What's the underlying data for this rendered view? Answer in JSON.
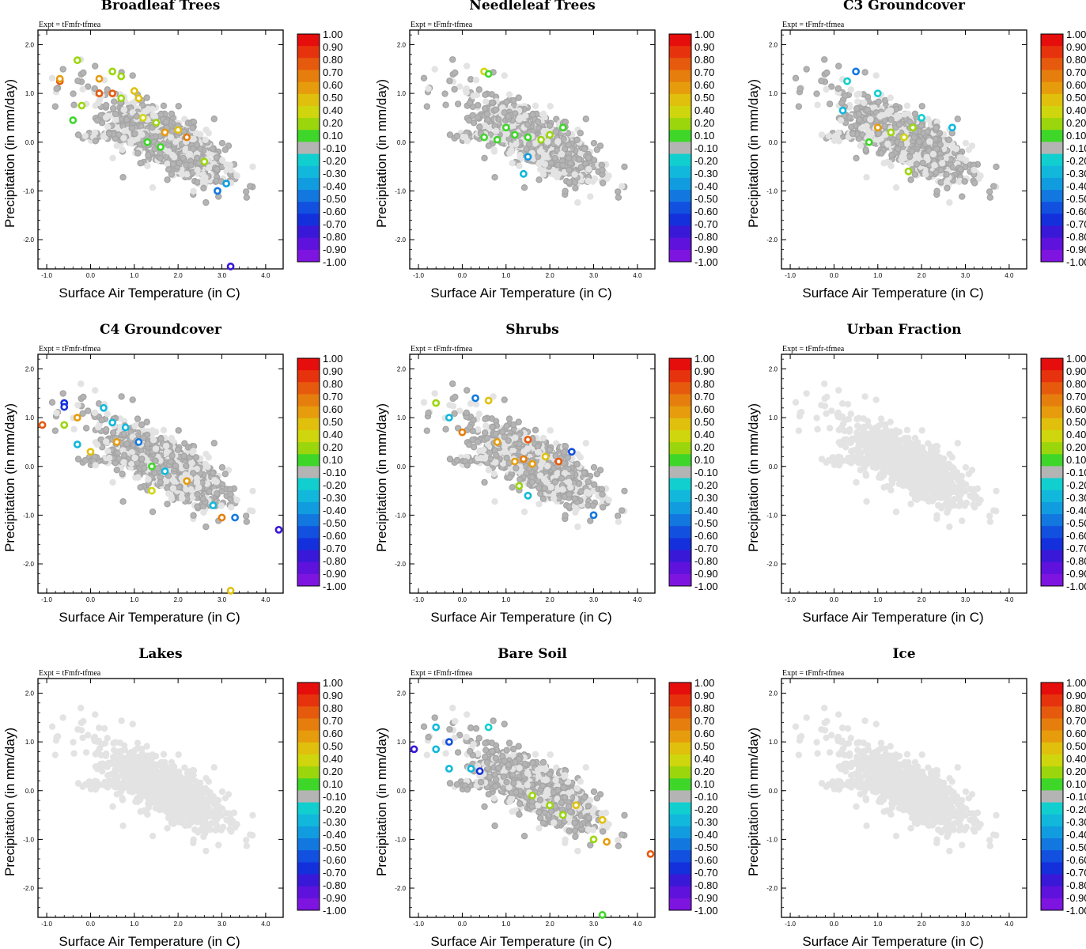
{
  "figure": {
    "expt_label": "Expt = tFmfr-tfmea",
    "xlabel": "Surface Air Temperature (in C)",
    "ylabel": "Precipitation (in mm/day)"
  },
  "colorbar": {
    "labels": [
      "1.00",
      "0.90",
      "0.80",
      "0.70",
      "0.60",
      "0.50",
      "0.40",
      "0.20",
      "0.10",
      "-0.10",
      "-0.20",
      "-0.30",
      "-0.40",
      "-0.50",
      "-0.60",
      "-0.70",
      "-0.80",
      "-0.90",
      "-1.00"
    ],
    "colors": [
      "#e60d0d",
      "#e6330d",
      "#e65a0d",
      "#e67e0d",
      "#e69c0d",
      "#e0c00d",
      "#cfd60d",
      "#9bd60d",
      "#3fd62a",
      "#b4b4b4",
      "#12cfcf",
      "#12b8dc",
      "#129ce0",
      "#1278e0",
      "#1250e0",
      "#1430dc",
      "#3a18d8",
      "#5e12dc",
      "#7e14e0"
    ],
    "neutral_color": "#b4b4b4",
    "background_point_color": "#e3e3e3"
  },
  "chart_data": [
    {
      "type": "scatter",
      "title": "Broadleaf Trees",
      "xlabel": "Surface Air Temperature (in C)",
      "ylabel": "Precipitation (in mm/day)",
      "xlim": [
        -1.2,
        4.4
      ],
      "ylim": [
        -2.6,
        2.3
      ],
      "xticks": [
        "-1.0",
        "0.0",
        "1.0",
        "2.0",
        "3.0",
        "4.0"
      ],
      "yticks": [
        "2.0",
        "1.0",
        "0.0",
        "-1.0",
        "-2.0"
      ],
      "highlighted_points": [
        {
          "x": -0.7,
          "y": 1.25,
          "v": 0.8
        },
        {
          "x": -0.7,
          "y": 1.3,
          "v": 0.6
        },
        {
          "x": -0.3,
          "y": 1.68,
          "v": 0.2
        },
        {
          "x": -0.2,
          "y": 0.75,
          "v": 0.2
        },
        {
          "x": 0.2,
          "y": 1.3,
          "v": 0.6
        },
        {
          "x": 0.2,
          "y": 1.0,
          "v": 0.8
        },
        {
          "x": 0.5,
          "y": 1.45,
          "v": 0.3
        },
        {
          "x": 0.5,
          "y": 1.0,
          "v": 0.8
        },
        {
          "x": 0.7,
          "y": 1.35,
          "v": 0.2
        },
        {
          "x": 1.0,
          "y": 1.05,
          "v": 0.5
        },
        {
          "x": 1.1,
          "y": 0.9,
          "v": 0.5
        },
        {
          "x": 1.2,
          "y": 0.5,
          "v": 0.4
        },
        {
          "x": 1.5,
          "y": 0.4,
          "v": 0.3
        },
        {
          "x": 1.7,
          "y": 0.2,
          "v": 0.6
        },
        {
          "x": 2.0,
          "y": 0.25,
          "v": 0.5
        },
        {
          "x": 2.2,
          "y": 0.1,
          "v": 0.7
        },
        {
          "x": 1.3,
          "y": 0.0,
          "v": 0.15
        },
        {
          "x": 1.6,
          "y": -0.1,
          "v": 0.15
        },
        {
          "x": 2.6,
          "y": -0.4,
          "v": 0.2
        },
        {
          "x": 2.9,
          "y": -1.0,
          "v": -0.5
        },
        {
          "x": 3.1,
          "y": -0.85,
          "v": -0.4
        },
        {
          "x": 3.2,
          "y": -2.55,
          "v": -0.8
        },
        {
          "x": -0.4,
          "y": 0.45,
          "v": 0.15
        },
        {
          "x": 0.7,
          "y": 0.9,
          "v": 0.3
        }
      ]
    },
    {
      "type": "scatter",
      "title": "Needleleaf Trees",
      "xlabel": "Surface Air Temperature (in C)",
      "ylabel": "Precipitation (in mm/day)",
      "xlim": [
        -1.2,
        4.4
      ],
      "ylim": [
        -2.6,
        2.3
      ],
      "xticks": [
        "-1.0",
        "0.0",
        "1.0",
        "2.0",
        "3.0",
        "4.0"
      ],
      "yticks": [
        "2.0",
        "1.0",
        "0.0",
        "-1.0",
        "-2.0"
      ],
      "highlighted_points": [
        {
          "x": 0.5,
          "y": 1.45,
          "v": 0.4
        },
        {
          "x": 0.6,
          "y": 1.4,
          "v": 0.15
        },
        {
          "x": 0.5,
          "y": 0.1,
          "v": 0.15
        },
        {
          "x": 0.8,
          "y": 0.05,
          "v": 0.15
        },
        {
          "x": 1.2,
          "y": 0.15,
          "v": 0.15
        },
        {
          "x": 1.5,
          "y": 0.1,
          "v": 0.15
        },
        {
          "x": 1.8,
          "y": 0.05,
          "v": 0.2
        },
        {
          "x": 2.0,
          "y": 0.15,
          "v": 0.2
        },
        {
          "x": 2.3,
          "y": 0.3,
          "v": 0.15
        },
        {
          "x": 1.5,
          "y": -0.3,
          "v": -0.4
        },
        {
          "x": 1.4,
          "y": -0.65,
          "v": -0.3
        },
        {
          "x": 1.0,
          "y": 0.3,
          "v": 0.15
        }
      ]
    },
    {
      "type": "scatter",
      "title": "C3 Groundcover",
      "xlabel": "Surface Air Temperature (in C)",
      "ylabel": "Precipitation (in mm/day)",
      "xlim": [
        -1.2,
        4.4
      ],
      "ylim": [
        -2.6,
        2.3
      ],
      "xticks": [
        "-1.0",
        "0.0",
        "1.0",
        "2.0",
        "3.0",
        "4.0"
      ],
      "yticks": [
        "2.0",
        "1.0",
        "0.0",
        "-1.0",
        "-2.0"
      ],
      "highlighted_points": [
        {
          "x": 0.2,
          "y": 0.65,
          "v": -0.3
        },
        {
          "x": 0.3,
          "y": 1.25,
          "v": -0.2
        },
        {
          "x": 0.5,
          "y": 1.45,
          "v": -0.5
        },
        {
          "x": 1.0,
          "y": 1.0,
          "v": -0.2
        },
        {
          "x": 1.0,
          "y": 0.3,
          "v": 0.6
        },
        {
          "x": 1.3,
          "y": 0.2,
          "v": 0.3
        },
        {
          "x": 1.6,
          "y": 0.1,
          "v": 0.4
        },
        {
          "x": 1.8,
          "y": 0.3,
          "v": 0.2
        },
        {
          "x": 2.0,
          "y": 0.5,
          "v": -0.2
        },
        {
          "x": 1.7,
          "y": -0.6,
          "v": 0.2
        },
        {
          "x": 2.7,
          "y": 0.3,
          "v": -0.3
        },
        {
          "x": 0.8,
          "y": 0.0,
          "v": 0.15
        }
      ]
    },
    {
      "type": "scatter",
      "title": "C4 Groundcover",
      "xlabel": "Surface Air Temperature (in C)",
      "ylabel": "Precipitation (in mm/day)",
      "xlim": [
        -1.2,
        4.4
      ],
      "ylim": [
        -2.6,
        2.3
      ],
      "xticks": [
        "-1.0",
        "0.0",
        "1.0",
        "2.0",
        "3.0",
        "4.0"
      ],
      "yticks": [
        "2.0",
        "1.0",
        "0.0",
        "-1.0",
        "-2.0"
      ],
      "highlighted_points": [
        {
          "x": -1.1,
          "y": 0.85,
          "v": 0.8
        },
        {
          "x": -0.6,
          "y": 1.3,
          "v": -0.7
        },
        {
          "x": -0.6,
          "y": 1.22,
          "v": -0.7
        },
        {
          "x": -0.6,
          "y": 0.85,
          "v": 0.2
        },
        {
          "x": -0.3,
          "y": 1.0,
          "v": 0.6
        },
        {
          "x": -0.3,
          "y": 0.45,
          "v": -0.3
        },
        {
          "x": 0.0,
          "y": 0.3,
          "v": 0.5
        },
        {
          "x": 0.3,
          "y": 1.2,
          "v": -0.3
        },
        {
          "x": 0.5,
          "y": 0.9,
          "v": -0.3
        },
        {
          "x": 0.6,
          "y": 0.5,
          "v": 0.6
        },
        {
          "x": 0.8,
          "y": 0.8,
          "v": -0.3
        },
        {
          "x": 1.1,
          "y": 0.5,
          "v": -0.5
        },
        {
          "x": 1.4,
          "y": 0.0,
          "v": 0.15
        },
        {
          "x": 1.7,
          "y": -0.1,
          "v": -0.3
        },
        {
          "x": 2.2,
          "y": -0.3,
          "v": 0.6
        },
        {
          "x": 2.8,
          "y": -0.8,
          "v": -0.3
        },
        {
          "x": 3.0,
          "y": -1.05,
          "v": 0.7
        },
        {
          "x": 3.3,
          "y": -1.05,
          "v": -0.5
        },
        {
          "x": 4.3,
          "y": -1.3,
          "v": -0.8
        },
        {
          "x": 3.2,
          "y": -2.55,
          "v": 0.5
        },
        {
          "x": 1.4,
          "y": -0.5,
          "v": 0.4
        }
      ]
    },
    {
      "type": "scatter",
      "title": "Shrubs",
      "xlabel": "Surface Air Temperature (in C)",
      "ylabel": "Precipitation (in mm/day)",
      "xlim": [
        -1.2,
        4.4
      ],
      "ylim": [
        -2.6,
        2.3
      ],
      "xticks": [
        "-1.0",
        "0.0",
        "1.0",
        "2.0",
        "3.0",
        "4.0"
      ],
      "yticks": [
        "2.0",
        "1.0",
        "0.0",
        "-1.0",
        "-2.0"
      ],
      "highlighted_points": [
        {
          "x": -0.6,
          "y": 1.3,
          "v": 0.2
        },
        {
          "x": -0.3,
          "y": 1.0,
          "v": -0.3
        },
        {
          "x": 0.0,
          "y": 0.7,
          "v": 0.7
        },
        {
          "x": 0.3,
          "y": 1.4,
          "v": -0.5
        },
        {
          "x": 0.6,
          "y": 1.35,
          "v": 0.5
        },
        {
          "x": 0.8,
          "y": 0.5,
          "v": 0.6
        },
        {
          "x": 1.2,
          "y": 0.1,
          "v": 0.6
        },
        {
          "x": 1.4,
          "y": 0.15,
          "v": 0.7
        },
        {
          "x": 1.6,
          "y": 0.05,
          "v": 0.6
        },
        {
          "x": 1.9,
          "y": 0.2,
          "v": 0.5
        },
        {
          "x": 2.2,
          "y": 0.1,
          "v": 0.8
        },
        {
          "x": 1.5,
          "y": 0.55,
          "v": 0.8
        },
        {
          "x": 1.5,
          "y": -0.6,
          "v": -0.3
        },
        {
          "x": 2.5,
          "y": 0.3,
          "v": -0.6
        },
        {
          "x": 3.0,
          "y": -1.0,
          "v": -0.5
        },
        {
          "x": 1.3,
          "y": -0.4,
          "v": 0.2
        }
      ]
    },
    {
      "type": "scatter",
      "title": "Urban Fraction",
      "xlabel": "Surface Air Temperature (in C)",
      "ylabel": "Precipitation (in mm/day)",
      "xlim": [
        -1.2,
        4.4
      ],
      "ylim": [
        -2.6,
        2.3
      ],
      "xticks": [
        "-1.0",
        "0.0",
        "1.0",
        "2.0",
        "3.0",
        "4.0"
      ],
      "yticks": [
        "2.0",
        "1.0",
        "0.0",
        "-1.0",
        "-2.0"
      ],
      "highlighted_points": []
    },
    {
      "type": "scatter",
      "title": "Lakes",
      "xlabel": "Surface Air Temperature (in C)",
      "ylabel": "Precipitation (in mm/day)",
      "xlim": [
        -1.2,
        4.4
      ],
      "ylim": [
        -2.6,
        2.3
      ],
      "xticks": [
        "-1.0",
        "0.0",
        "1.0",
        "2.0",
        "3.0",
        "4.0"
      ],
      "yticks": [
        "2.0",
        "1.0",
        "0.0",
        "-1.0",
        "-2.0"
      ],
      "highlighted_points": []
    },
    {
      "type": "scatter",
      "title": "Bare Soil",
      "xlabel": "Surface Air Temperature (in C)",
      "ylabel": "Precipitation (in mm/day)",
      "xlim": [
        -1.2,
        4.4
      ],
      "ylim": [
        -2.6,
        2.3
      ],
      "xticks": [
        "-1.0",
        "0.0",
        "1.0",
        "2.0",
        "3.0",
        "4.0"
      ],
      "yticks": [
        "2.0",
        "1.0",
        "0.0",
        "-1.0",
        "-2.0"
      ],
      "highlighted_points": [
        {
          "x": -1.1,
          "y": 0.85,
          "v": -0.8
        },
        {
          "x": -0.6,
          "y": 1.3,
          "v": -0.3
        },
        {
          "x": -0.6,
          "y": 0.85,
          "v": -0.3
        },
        {
          "x": -0.3,
          "y": 1.0,
          "v": -0.6
        },
        {
          "x": -0.3,
          "y": 0.45,
          "v": -0.3
        },
        {
          "x": 0.2,
          "y": 0.45,
          "v": -0.3
        },
        {
          "x": 0.4,
          "y": 0.4,
          "v": -0.7
        },
        {
          "x": 0.6,
          "y": 1.3,
          "v": -0.2
        },
        {
          "x": 1.6,
          "y": -0.1,
          "v": 0.2
        },
        {
          "x": 2.0,
          "y": -0.3,
          "v": 0.3
        },
        {
          "x": 2.3,
          "y": -0.5,
          "v": 0.2
        },
        {
          "x": 3.0,
          "y": -1.0,
          "v": 0.3
        },
        {
          "x": 3.2,
          "y": -0.6,
          "v": 0.5
        },
        {
          "x": 3.3,
          "y": -1.05,
          "v": 0.6
        },
        {
          "x": 4.3,
          "y": -1.3,
          "v": 0.8
        },
        {
          "x": 3.2,
          "y": -2.55,
          "v": 0.15
        },
        {
          "x": 2.6,
          "y": -0.3,
          "v": 0.5
        }
      ]
    },
    {
      "type": "scatter",
      "title": "Ice",
      "xlabel": "Surface Air Temperature (in C)",
      "ylabel": "Precipitation (in mm/day)",
      "xlim": [
        -1.2,
        4.4
      ],
      "ylim": [
        -2.6,
        2.3
      ],
      "xticks": [
        "-1.0",
        "0.0",
        "1.0",
        "2.0",
        "3.0",
        "4.0"
      ],
      "yticks": [
        "2.0",
        "1.0",
        "0.0",
        "-1.0",
        "-2.0"
      ],
      "highlighted_points": []
    }
  ]
}
